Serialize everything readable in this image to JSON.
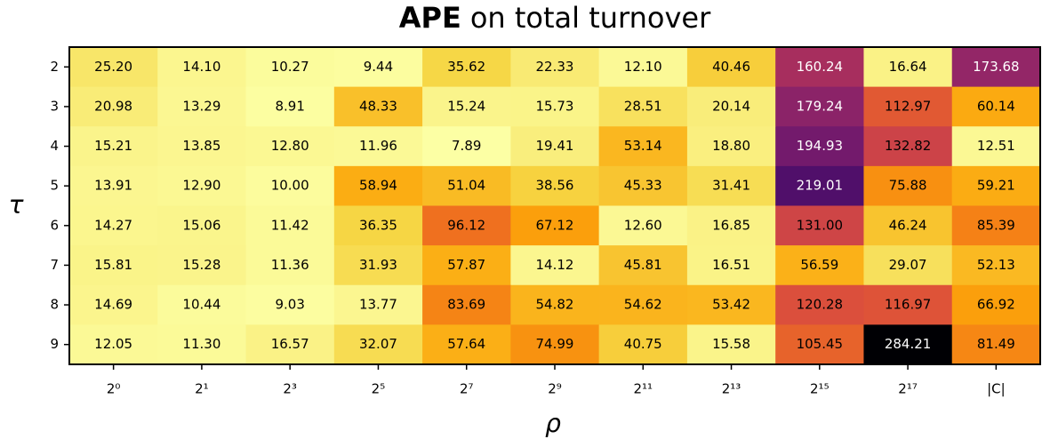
{
  "chart_data": {
    "type": "heatmap",
    "title_bold": "APE",
    "title": "on total turnover",
    "x_label": "ρ",
    "y_label": "τ",
    "x_categories": [
      "2⁰",
      "2¹",
      "2³",
      "2⁵",
      "2⁷",
      "2⁹",
      "2¹¹",
      "2¹³",
      "2¹⁵",
      "2¹⁷",
      "|C|"
    ],
    "y_categories": [
      2,
      3,
      4,
      5,
      6,
      7,
      8,
      9
    ],
    "colormap": "inferno_r",
    "clim": [
      7.89,
      284.21
    ],
    "values": [
      [
        25.2,
        14.1,
        10.27,
        9.44,
        35.62,
        22.33,
        12.1,
        40.46,
        160.24,
        16.64,
        173.68
      ],
      [
        20.98,
        13.29,
        8.91,
        48.33,
        15.24,
        15.73,
        28.51,
        20.14,
        179.24,
        112.97,
        60.14
      ],
      [
        15.21,
        13.85,
        12.8,
        11.96,
        7.89,
        19.41,
        53.14,
        18.8,
        194.93,
        132.82,
        12.51
      ],
      [
        13.91,
        12.9,
        10,
        58.94,
        51.04,
        38.56,
        45.33,
        31.41,
        219.01,
        75.88,
        59.21
      ],
      [
        14.27,
        15.06,
        11.42,
        36.35,
        96.12,
        67.12,
        12.6,
        16.85,
        131,
        46.24,
        85.39
      ],
      [
        15.81,
        15.28,
        11.36,
        31.93,
        57.87,
        14.12,
        45.81,
        16.51,
        56.59,
        29.07,
        52.13
      ],
      [
        14.69,
        10.44,
        9.03,
        13.77,
        83.69,
        54.82,
        54.62,
        53.42,
        120.28,
        116.97,
        66.92
      ],
      [
        12.05,
        11.3,
        16.57,
        32.07,
        57.64,
        74.99,
        40.75,
        15.58,
        105.45,
        284.21,
        81.49
      ]
    ],
    "value_labels": [
      [
        "25.20",
        "14.10",
        "10.27",
        "9.44",
        "35.62",
        "22.33",
        "12.10",
        "40.46",
        "160.24",
        "16.64",
        "173.68"
      ],
      [
        "20.98",
        "13.29",
        "8.91",
        "48.33",
        "15.24",
        "15.73",
        "28.51",
        "20.14",
        "179.24",
        "112.97",
        "60.14"
      ],
      [
        "15.21",
        "13.85",
        "12.80",
        "11.96",
        "7.89",
        "19.41",
        "53.14",
        "18.80",
        "194.93",
        "132.82",
        "12.51"
      ],
      [
        "13.91",
        "12.90",
        "10.00",
        "58.94",
        "51.04",
        "38.56",
        "45.33",
        "31.41",
        "219.01",
        "75.88",
        "59.21"
      ],
      [
        "14.27",
        "15.06",
        "11.42",
        "36.35",
        "96.12",
        "67.12",
        "12.60",
        "16.85",
        "131.00",
        "46.24",
        "85.39"
      ],
      [
        "15.81",
        "15.28",
        "11.36",
        "31.93",
        "57.87",
        "14.12",
        "45.81",
        "16.51",
        "56.59",
        "29.07",
        "52.13"
      ],
      [
        "14.69",
        "10.44",
        "9.03",
        "13.77",
        "83.69",
        "54.82",
        "54.62",
        "53.42",
        "120.28",
        "116.97",
        "66.92"
      ],
      [
        "12.05",
        "11.30",
        "16.57",
        "32.07",
        "57.64",
        "74.99",
        "40.75",
        "15.58",
        "105.45",
        "284.21",
        "81.49"
      ]
    ]
  }
}
